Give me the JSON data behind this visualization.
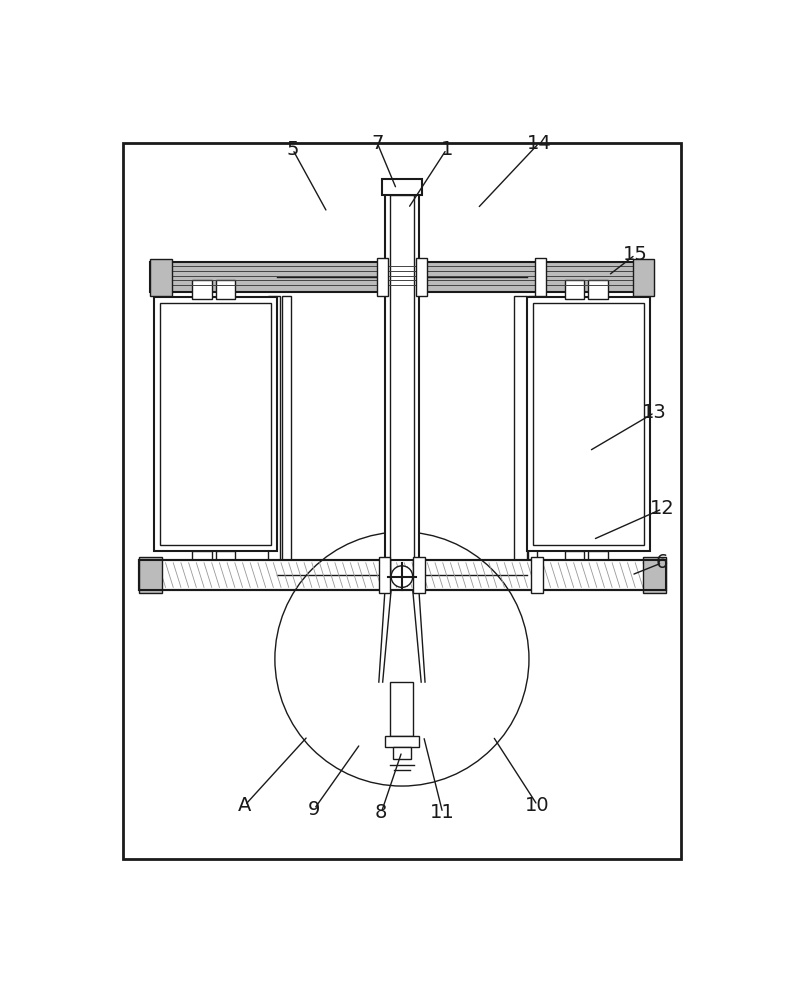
{
  "bg_color": "#ffffff",
  "line_color": "#1a1a1a",
  "gray_color": "#888888",
  "light_gray": "#bbbbbb",
  "dark_gray": "#444444",
  "figsize": [
    7.85,
    10.0
  ],
  "dpi": 100
}
